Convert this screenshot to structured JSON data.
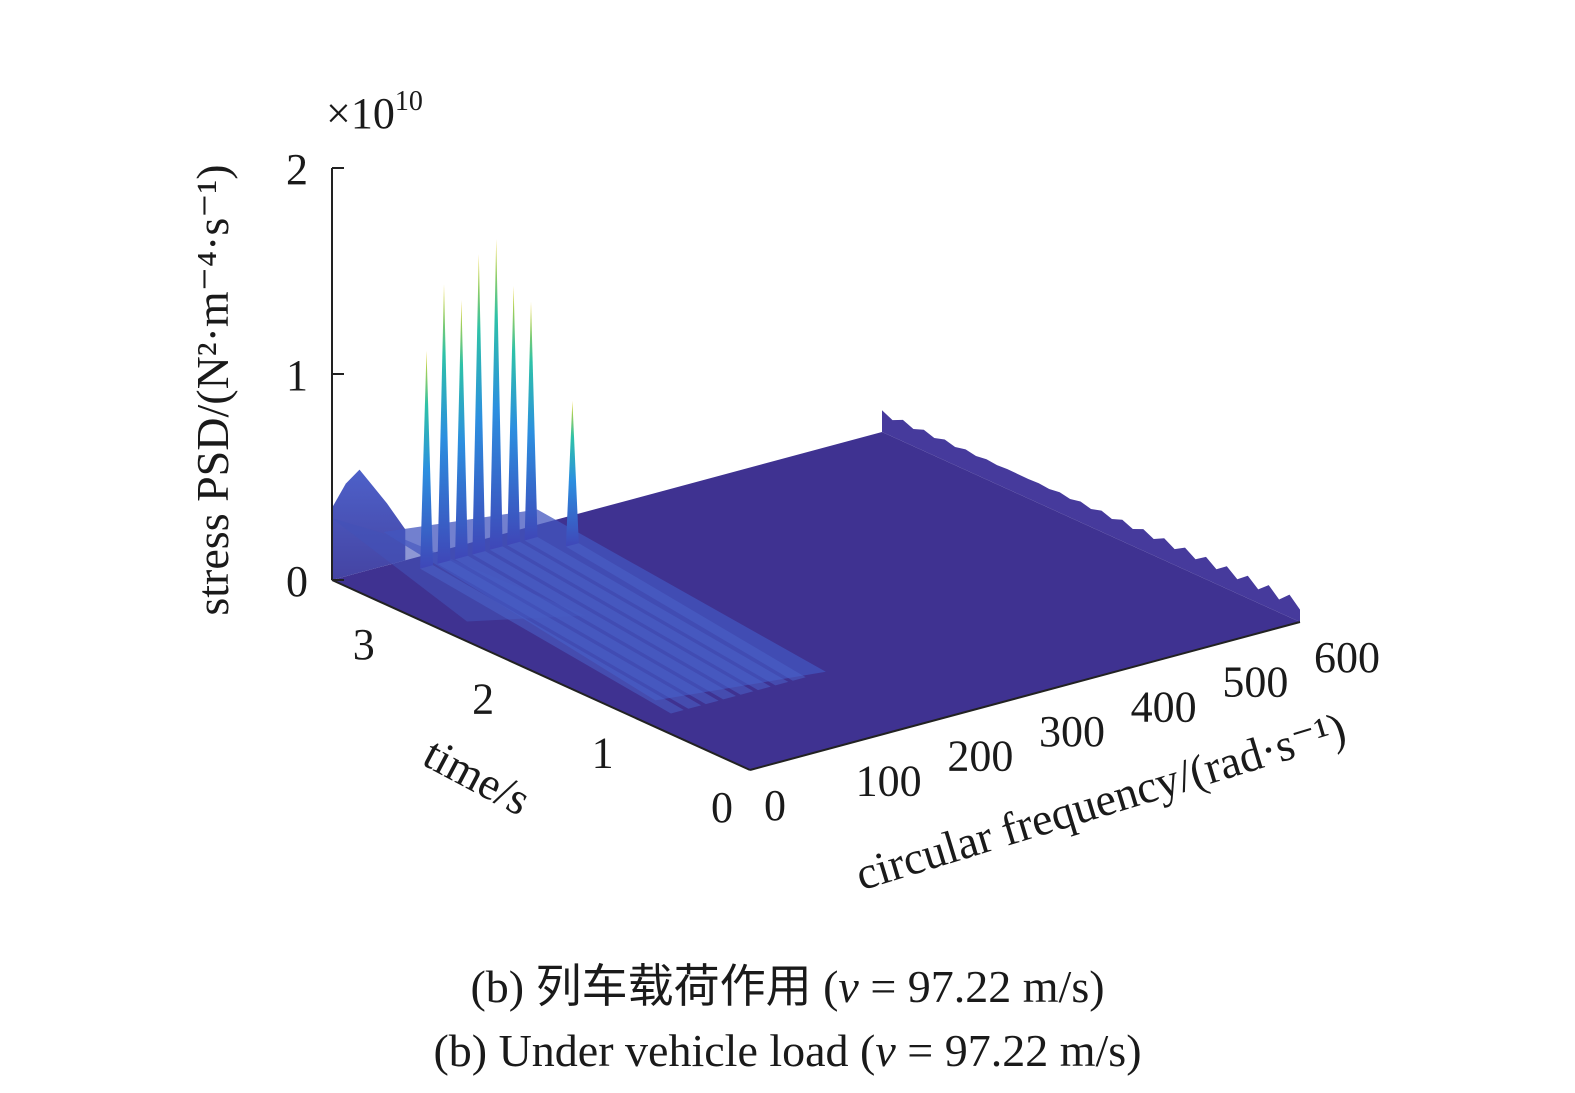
{
  "chart_data": {
    "type": "surface",
    "zlabel": "stress PSD/(N²·m⁻⁴·s⁻¹)",
    "xlabel": "circular frequency/(rad·s⁻¹)",
    "ylabel": "time/s",
    "z_multiplier": "×10",
    "z_exponent": "10",
    "xlim": [
      0,
      600
    ],
    "ylim": [
      0,
      3.5
    ],
    "zlim": [
      0,
      2
    ],
    "x_ticks": [
      "0",
      "100",
      "200",
      "300",
      "400",
      "500",
      "600"
    ],
    "y_ticks": [
      "0",
      "1",
      "2",
      "3"
    ],
    "z_ticks": [
      "0",
      "1",
      "2"
    ],
    "colormap": [
      "#3e2f96",
      "#4067d9",
      "#2aa3dd",
      "#2cc4a4",
      "#8fcd5a",
      "#f4d12d"
    ],
    "surface_base_color": "#3f3291",
    "ridges": [
      {
        "x": 38,
        "y_start": 0.9,
        "y_end": 3.4,
        "peak": 1.2,
        "peak_time": 3.0
      },
      {
        "x": 57,
        "y_start": 0.9,
        "y_end": 3.4,
        "peak": 1.5,
        "peak_time": 3.0
      },
      {
        "x": 76,
        "y_start": 0.9,
        "y_end": 3.4,
        "peak": 1.4,
        "peak_time": 3.0
      },
      {
        "x": 95,
        "y_start": 0.9,
        "y_end": 3.4,
        "peak": 1.6,
        "peak_time": 3.0
      },
      {
        "x": 114,
        "y_start": 0.9,
        "y_end": 3.4,
        "peak": 1.65,
        "peak_time": 3.0
      },
      {
        "x": 133,
        "y_start": 0.9,
        "y_end": 3.4,
        "peak": 1.4,
        "peak_time": 3.0
      },
      {
        "x": 152,
        "y_start": 0.9,
        "y_end": 3.4,
        "peak": 1.3,
        "peak_time": 3.0
      },
      {
        "x": 171,
        "y_start": 0.9,
        "y_end": 3.4,
        "peak": 0.85,
        "peak_time": 2.8
      }
    ],
    "back_edge_profile": [
      {
        "x": 0,
        "z": 0.35
      },
      {
        "x": 15,
        "z": 0.45
      },
      {
        "x": 30,
        "z": 0.5
      },
      {
        "x": 45,
        "z": 0.4
      },
      {
        "x": 60,
        "z": 0.3
      },
      {
        "x": 80,
        "z": 0.15
      }
    ]
  },
  "caption": {
    "zh_prefix": "(b) 列车载荷作用 (",
    "en_prefix": "(b) Under vehicle load (",
    "var": "v",
    "suffix": " = 97.22 m/s)"
  }
}
